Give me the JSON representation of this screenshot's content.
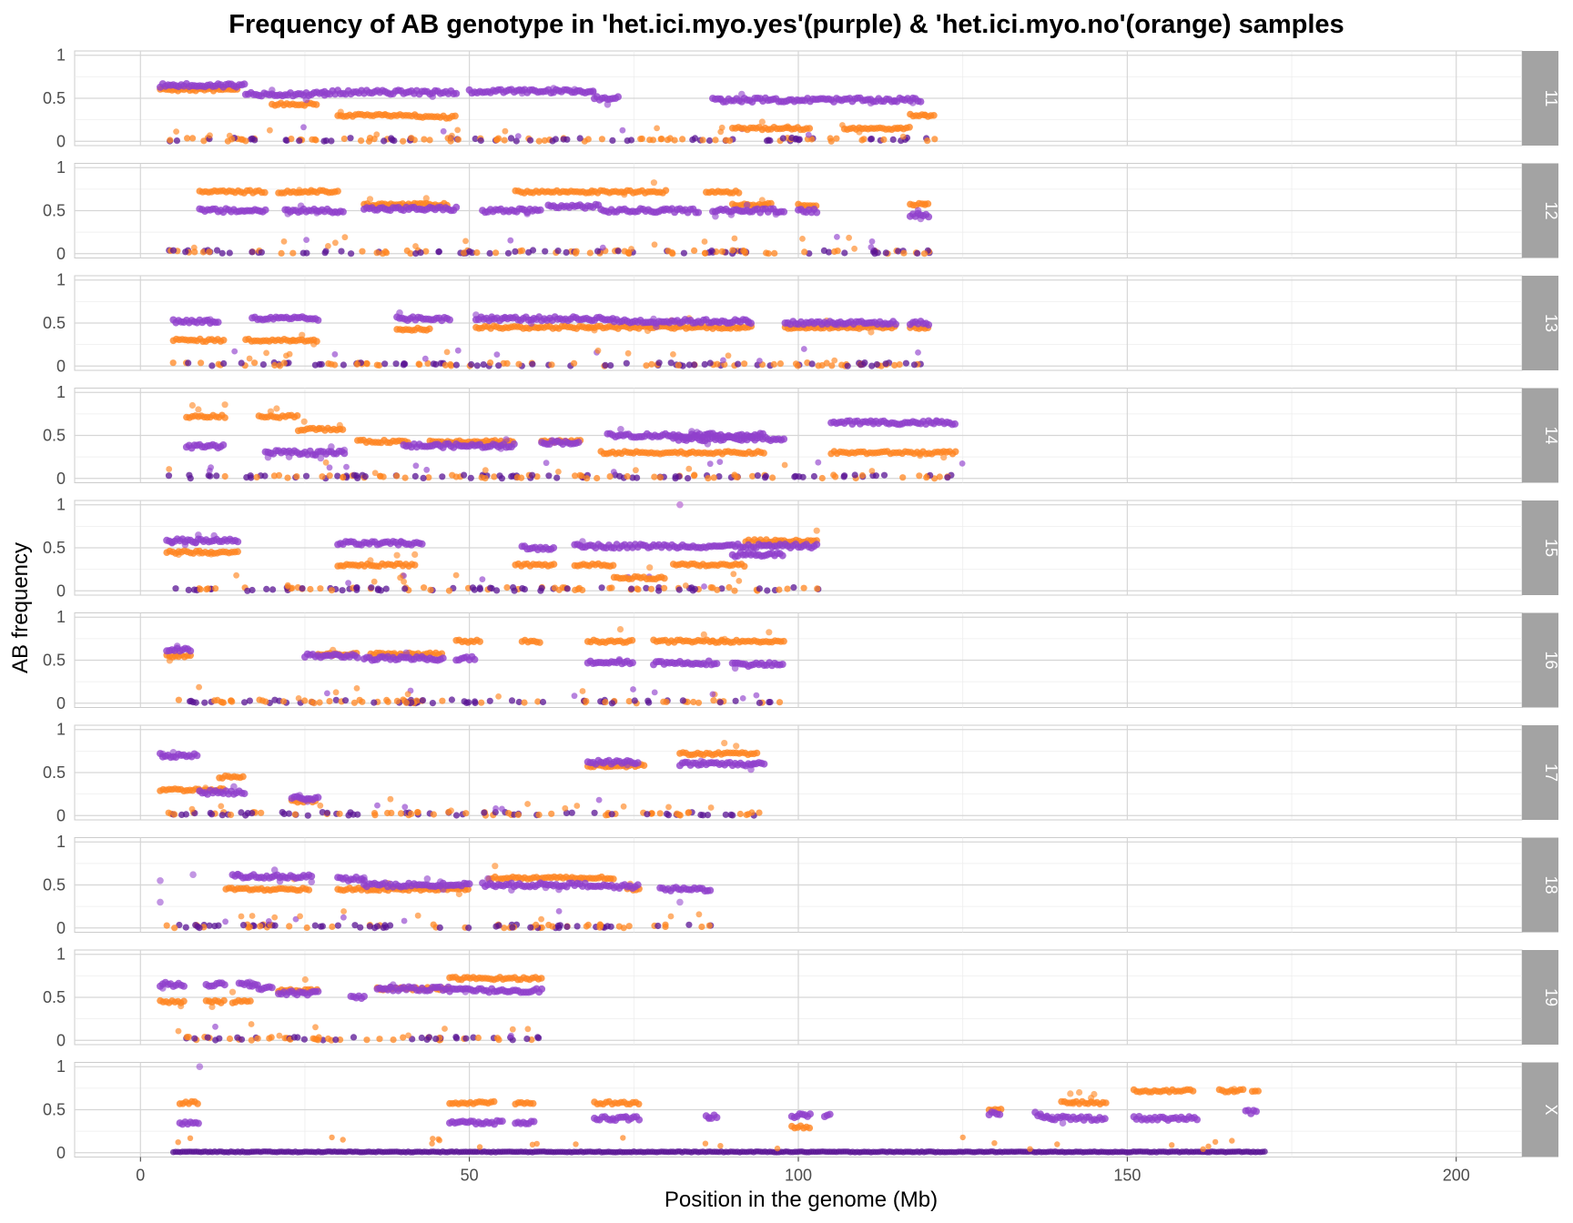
{
  "chart_data": {
    "type": "scatter",
    "title": "Frequency of AB genotype in 'het.ici.myo.yes'(purple) & 'het.ici.myo.no'(orange) samples",
    "xlabel": "Position in the genome (Mb)",
    "ylabel": "AB frequency",
    "xlim": [
      -10,
      210
    ],
    "ylim": [
      -0.05,
      1.05
    ],
    "x_ticks": [
      0,
      50,
      100,
      150,
      200
    ],
    "y_ticks": [
      0,
      0.5,
      1
    ],
    "y_tick_labels": [
      "0",
      "0.5",
      "1"
    ],
    "grid": true,
    "facet": "chromosome strips on right",
    "series": [
      {
        "name": "het.ici.myo.yes",
        "color": "#9040cc"
      },
      {
        "name": "het.ici.myo.no",
        "color": "#ff8520"
      }
    ],
    "panels": [
      {
        "chromosome": "11",
        "xmax": 121,
        "yes": [
          [
            3,
            16,
            0.65
          ],
          [
            16,
            28,
            0.55
          ],
          [
            28,
            48,
            0.57
          ],
          [
            50,
            69,
            0.58
          ],
          [
            69,
            73,
            0.5
          ],
          [
            87,
            103,
            0.48
          ],
          [
            103,
            119,
            0.48
          ]
        ],
        "no": [
          [
            3,
            15,
            0.6
          ],
          [
            20,
            27,
            0.43
          ],
          [
            30,
            42,
            0.3
          ],
          [
            42,
            48,
            0.28
          ],
          [
            90,
            102,
            0.15
          ],
          [
            107,
            117,
            0.15
          ],
          [
            117,
            121,
            0.3
          ]
        ]
      },
      {
        "chromosome": "12",
        "xmax": 120,
        "yes": [
          [
            9,
            19,
            0.5
          ],
          [
            22,
            31,
            0.5
          ],
          [
            34,
            48,
            0.52
          ],
          [
            52,
            61,
            0.5
          ],
          [
            62,
            70,
            0.55
          ],
          [
            70,
            85,
            0.5
          ],
          [
            87,
            98,
            0.5
          ],
          [
            100,
            103,
            0.5
          ],
          [
            117,
            120,
            0.45
          ]
        ],
        "no": [
          [
            9,
            19,
            0.72
          ],
          [
            21,
            30,
            0.72
          ],
          [
            34,
            47,
            0.57
          ],
          [
            57,
            65,
            0.72
          ],
          [
            65,
            80,
            0.72
          ],
          [
            86,
            91,
            0.72
          ],
          [
            90,
            96,
            0.57
          ],
          [
            100,
            103,
            0.57
          ],
          [
            117,
            120,
            0.57
          ]
        ]
      },
      {
        "chromosome": "13",
        "xmax": 120,
        "yes": [
          [
            5,
            12,
            0.52
          ],
          [
            17,
            27,
            0.55
          ],
          [
            39,
            47,
            0.55
          ],
          [
            51,
            72,
            0.55
          ],
          [
            72,
            93,
            0.52
          ],
          [
            98,
            115,
            0.5
          ],
          [
            117,
            120,
            0.5
          ]
        ],
        "no": [
          [
            5,
            13,
            0.3
          ],
          [
            16,
            27,
            0.3
          ],
          [
            39,
            44,
            0.43
          ],
          [
            51,
            93,
            0.45
          ],
          [
            98,
            115,
            0.45
          ],
          [
            117,
            120,
            0.45
          ]
        ]
      },
      {
        "chromosome": "14",
        "xmax": 125,
        "yes": [
          [
            7,
            13,
            0.37
          ],
          [
            19,
            31,
            0.3
          ],
          [
            40,
            57,
            0.38
          ],
          [
            61,
            67,
            0.42
          ],
          [
            71,
            95,
            0.5
          ],
          [
            81,
            98,
            0.46
          ],
          [
            105,
            124,
            0.65
          ]
        ],
        "no": [
          [
            7,
            13,
            0.72
          ],
          [
            18,
            24,
            0.72
          ],
          [
            24,
            31,
            0.57
          ],
          [
            33,
            41,
            0.43
          ],
          [
            44,
            57,
            0.43
          ],
          [
            61,
            67,
            0.43
          ],
          [
            70,
            95,
            0.3
          ],
          [
            105,
            124,
            0.3
          ]
        ]
      },
      {
        "chromosome": "15",
        "xmax": 104,
        "yes": [
          [
            4,
            15,
            0.58
          ],
          [
            30,
            43,
            0.55
          ],
          [
            58,
            63,
            0.5
          ],
          [
            66,
            103,
            0.52
          ],
          [
            90,
            98,
            0.42
          ]
        ],
        "no": [
          [
            4,
            15,
            0.45
          ],
          [
            30,
            42,
            0.3
          ],
          [
            57,
            63,
            0.3
          ],
          [
            66,
            72,
            0.3
          ],
          [
            72,
            80,
            0.15
          ],
          [
            81,
            92,
            0.3
          ],
          [
            92,
            103,
            0.58
          ]
        ]
      },
      {
        "chromosome": "16",
        "xmax": 98,
        "yes": [
          [
            4,
            8,
            0.62
          ],
          [
            25,
            33,
            0.55
          ],
          [
            34,
            46,
            0.52
          ],
          [
            48,
            51,
            0.52
          ],
          [
            68,
            75,
            0.48
          ],
          [
            78,
            88,
            0.47
          ],
          [
            90,
            98,
            0.45
          ]
        ],
        "no": [
          [
            4,
            8,
            0.55
          ],
          [
            27,
            33,
            0.57
          ],
          [
            35,
            46,
            0.57
          ],
          [
            48,
            52,
            0.72
          ],
          [
            58,
            61,
            0.72
          ],
          [
            68,
            75,
            0.72
          ],
          [
            78,
            98,
            0.72
          ]
        ]
      },
      {
        "chromosome": "17",
        "xmax": 95,
        "yes": [
          [
            3,
            9,
            0.7
          ],
          [
            9,
            16,
            0.27
          ],
          [
            23,
            27,
            0.2
          ],
          [
            68,
            76,
            0.62
          ],
          [
            82,
            95,
            0.6
          ]
        ],
        "no": [
          [
            3,
            9,
            0.3
          ],
          [
            9,
            13,
            0.3
          ],
          [
            12,
            16,
            0.45
          ],
          [
            23,
            27,
            0.17
          ],
          [
            68,
            77,
            0.58
          ],
          [
            82,
            94,
            0.72
          ]
        ]
      },
      {
        "chromosome": "18",
        "xmax": 87,
        "yes": [
          [
            14,
            26,
            0.6
          ],
          [
            30,
            34,
            0.57
          ],
          [
            34,
            50,
            0.5
          ],
          [
            52,
            70,
            0.5
          ],
          [
            70,
            76,
            0.48
          ],
          [
            79,
            87,
            0.45
          ]
        ],
        "no": [
          [
            13,
            26,
            0.45
          ],
          [
            30,
            50,
            0.45
          ],
          [
            53,
            72,
            0.58
          ],
          [
            74,
            76,
            0.45
          ]
        ],
        "outliers": [
          [
            3,
            0.55
          ],
          [
            8,
            0.62
          ],
          [
            3,
            0.3
          ],
          [
            82,
            0.3
          ]
        ]
      },
      {
        "chromosome": "19",
        "xmax": 61,
        "yes": [
          [
            3,
            7,
            0.65
          ],
          [
            10,
            13,
            0.65
          ],
          [
            15,
            18,
            0.65
          ],
          [
            18,
            20,
            0.6
          ],
          [
            21,
            27,
            0.55
          ],
          [
            32,
            34,
            0.5
          ],
          [
            36,
            47,
            0.6
          ],
          [
            47,
            61,
            0.58
          ]
        ],
        "no": [
          [
            3,
            7,
            0.45
          ],
          [
            10,
            13,
            0.45
          ],
          [
            14,
            17,
            0.45
          ],
          [
            21,
            27,
            0.58
          ],
          [
            36,
            47,
            0.6
          ],
          [
            47,
            61,
            0.72
          ]
        ]
      },
      {
        "chromosome": "X",
        "xmax": 171,
        "yes": [
          [
            6,
            9,
            0.35
          ],
          [
            47,
            55,
            0.35
          ],
          [
            57,
            60,
            0.35
          ],
          [
            69,
            76,
            0.4
          ],
          [
            86,
            88,
            0.42
          ],
          [
            99,
            102,
            0.43
          ],
          [
            104,
            105,
            0.43
          ],
          [
            129,
            131,
            0.45
          ],
          [
            136,
            137,
            0.45
          ],
          [
            137,
            147,
            0.4
          ],
          [
            151,
            161,
            0.4
          ],
          [
            168,
            170,
            0.47
          ]
        ],
        "no": [
          [
            6,
            9,
            0.58
          ],
          [
            47,
            54,
            0.58
          ],
          [
            57,
            60,
            0.58
          ],
          [
            69,
            76,
            0.58
          ],
          [
            99,
            102,
            0.3
          ],
          [
            129,
            131,
            0.5
          ],
          [
            140,
            147,
            0.58
          ],
          [
            151,
            160,
            0.72
          ],
          [
            164,
            168,
            0.72
          ],
          [
            169,
            170,
            0.72
          ]
        ],
        "outliers": [
          [
            9,
            1.0
          ]
        ]
      }
    ],
    "extra_points": [
      {
        "chromosome": "15",
        "x": 82,
        "y": 1.0
      }
    ]
  }
}
